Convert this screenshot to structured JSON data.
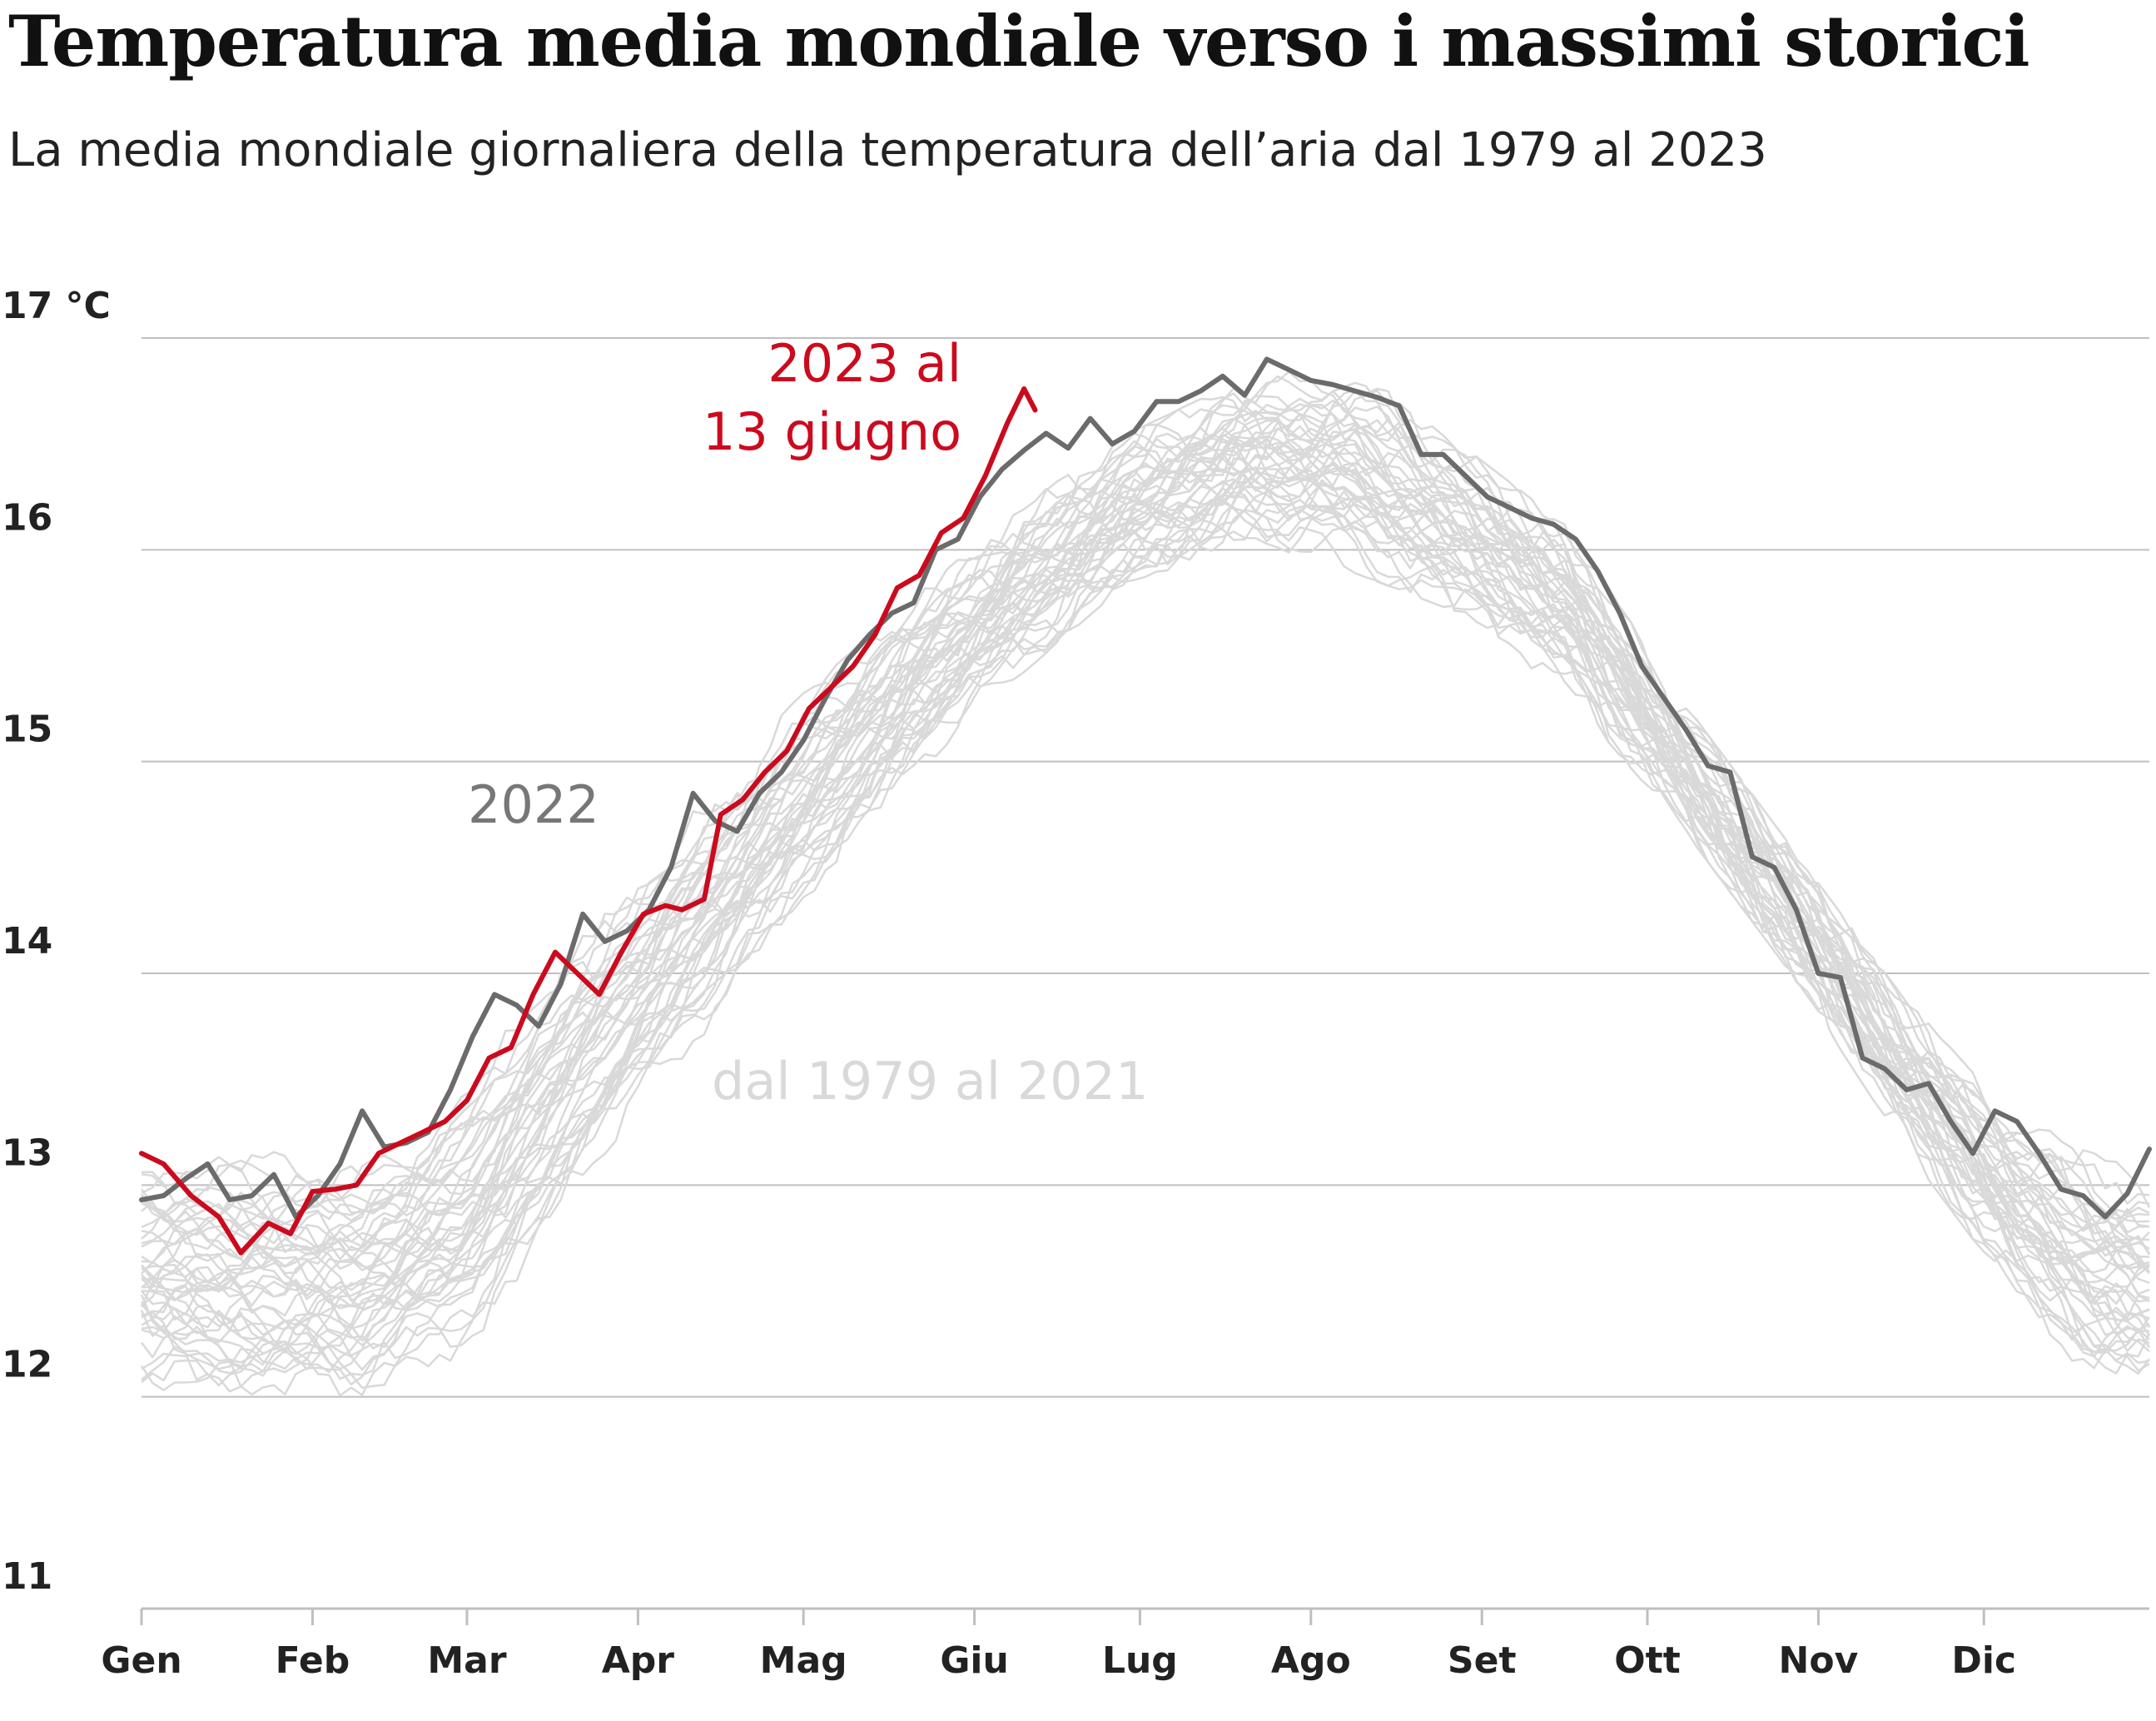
{
  "header": {
    "title": "Temperatura media mondiale verso i massimi storici",
    "subtitle": "La media mondiale giornaliera della temperatura dell’aria dal 1979 al 2023"
  },
  "colors": {
    "series_2023": "#cc0a1e",
    "series_2022": "#6b6b6b",
    "series_hist": "#d9d9d9",
    "grid": "#bfbfbf"
  },
  "chart_data": {
    "type": "line",
    "title": "Temperatura media mondiale verso i massimi storici",
    "subtitle": "La media mondiale giornaliera della temperatura dell’aria dal 1979 al 2023",
    "ylim": [
      11,
      17
    ],
    "y_ticks": [
      {
        "value": 17,
        "label": "17 °C"
      },
      {
        "value": 16,
        "label": "16"
      },
      {
        "value": 15,
        "label": "15"
      },
      {
        "value": 14,
        "label": "14"
      },
      {
        "value": 13,
        "label": "13"
      },
      {
        "value": 12,
        "label": "12"
      },
      {
        "value": 11,
        "label": "11"
      }
    ],
    "x_unit": "day of year",
    "xlim": [
      1,
      365
    ],
    "x_ticks": [
      {
        "day": 1,
        "label": "Gen"
      },
      {
        "day": 32,
        "label": "Feb"
      },
      {
        "day": 60,
        "label": "Mar"
      },
      {
        "day": 91,
        "label": "Apr"
      },
      {
        "day": 121,
        "label": "Mag"
      },
      {
        "day": 152,
        "label": "Giu"
      },
      {
        "day": 182,
        "label": "Lug"
      },
      {
        "day": 213,
        "label": "Ago"
      },
      {
        "day": 244,
        "label": "Set"
      },
      {
        "day": 274,
        "label": "Ott"
      },
      {
        "day": 305,
        "label": "Nov"
      },
      {
        "day": 335,
        "label": "Dic"
      }
    ],
    "grid": true,
    "annotations": [
      {
        "text": "2023 al",
        "series": "2023"
      },
      {
        "text": "13 giugno",
        "series": "2023"
      },
      {
        "text": "2022",
        "series": "2022"
      },
      {
        "text": "dal 1979 al 2021",
        "series": "1979-2021"
      }
    ],
    "series": [
      {
        "id": "2023",
        "points": [
          [
            1,
            13.15
          ],
          [
            5,
            13.1
          ],
          [
            10,
            12.95
          ],
          [
            15,
            12.85
          ],
          [
            19,
            12.68
          ],
          [
            24,
            12.82
          ],
          [
            28,
            12.77
          ],
          [
            32,
            12.97
          ],
          [
            36,
            12.98
          ],
          [
            40,
            13.0
          ],
          [
            44,
            13.15
          ],
          [
            48,
            13.2
          ],
          [
            52,
            13.25
          ],
          [
            56,
            13.3
          ],
          [
            60,
            13.4
          ],
          [
            64,
            13.6
          ],
          [
            68,
            13.65
          ],
          [
            72,
            13.9
          ],
          [
            76,
            14.1
          ],
          [
            80,
            14.0
          ],
          [
            84,
            13.9
          ],
          [
            88,
            14.1
          ],
          [
            92,
            14.28
          ],
          [
            96,
            14.32
          ],
          [
            99,
            14.3
          ],
          [
            103,
            14.35
          ],
          [
            106,
            14.75
          ],
          [
            110,
            14.82
          ],
          [
            114,
            14.95
          ],
          [
            118,
            15.05
          ],
          [
            122,
            15.25
          ],
          [
            126,
            15.35
          ],
          [
            130,
            15.45
          ],
          [
            134,
            15.6
          ],
          [
            138,
            15.82
          ],
          [
            142,
            15.88
          ],
          [
            146,
            16.08
          ],
          [
            150,
            16.15
          ],
          [
            154,
            16.35
          ],
          [
            158,
            16.6
          ],
          [
            161,
            16.76
          ],
          [
            163,
            16.66
          ]
        ]
      },
      {
        "id": "2022",
        "points": [
          [
            1,
            12.93
          ],
          [
            5,
            12.95
          ],
          [
            9,
            13.03
          ],
          [
            13,
            13.1
          ],
          [
            17,
            12.93
          ],
          [
            21,
            12.95
          ],
          [
            25,
            13.05
          ],
          [
            29,
            12.85
          ],
          [
            33,
            12.95
          ],
          [
            37,
            13.1
          ],
          [
            41,
            13.35
          ],
          [
            45,
            13.18
          ],
          [
            49,
            13.2
          ],
          [
            53,
            13.25
          ],
          [
            57,
            13.45
          ],
          [
            61,
            13.7
          ],
          [
            65,
            13.9
          ],
          [
            69,
            13.85
          ],
          [
            73,
            13.75
          ],
          [
            77,
            13.95
          ],
          [
            81,
            14.28
          ],
          [
            85,
            14.15
          ],
          [
            89,
            14.2
          ],
          [
            93,
            14.3
          ],
          [
            97,
            14.5
          ],
          [
            101,
            14.85
          ],
          [
            105,
            14.72
          ],
          [
            109,
            14.67
          ],
          [
            113,
            14.85
          ],
          [
            117,
            14.95
          ],
          [
            121,
            15.1
          ],
          [
            125,
            15.3
          ],
          [
            129,
            15.48
          ],
          [
            133,
            15.6
          ],
          [
            137,
            15.7
          ],
          [
            141,
            15.75
          ],
          [
            145,
            16.0
          ],
          [
            149,
            16.05
          ],
          [
            153,
            16.25
          ],
          [
            157,
            16.38
          ],
          [
            161,
            16.47
          ],
          [
            165,
            16.55
          ],
          [
            169,
            16.48
          ],
          [
            173,
            16.62
          ],
          [
            177,
            16.5
          ],
          [
            181,
            16.56
          ],
          [
            185,
            16.7
          ],
          [
            189,
            16.7
          ],
          [
            193,
            16.75
          ],
          [
            197,
            16.82
          ],
          [
            201,
            16.73
          ],
          [
            205,
            16.9
          ],
          [
            209,
            16.85
          ],
          [
            213,
            16.8
          ],
          [
            217,
            16.78
          ],
          [
            221,
            16.75
          ],
          [
            225,
            16.72
          ],
          [
            229,
            16.68
          ],
          [
            233,
            16.45
          ],
          [
            237,
            16.45
          ],
          [
            241,
            16.35
          ],
          [
            245,
            16.25
          ],
          [
            249,
            16.2
          ],
          [
            253,
            16.15
          ],
          [
            257,
            16.12
          ],
          [
            261,
            16.05
          ],
          [
            265,
            15.9
          ],
          [
            269,
            15.7
          ],
          [
            273,
            15.45
          ],
          [
            277,
            15.3
          ],
          [
            281,
            15.15
          ],
          [
            285,
            14.98
          ],
          [
            289,
            14.95
          ],
          [
            293,
            14.55
          ],
          [
            297,
            14.5
          ],
          [
            301,
            14.3
          ],
          [
            305,
            14.0
          ],
          [
            309,
            13.98
          ],
          [
            313,
            13.6
          ],
          [
            317,
            13.55
          ],
          [
            321,
            13.45
          ],
          [
            325,
            13.48
          ],
          [
            329,
            13.3
          ],
          [
            333,
            13.15
          ],
          [
            337,
            13.35
          ],
          [
            341,
            13.3
          ],
          [
            345,
            13.15
          ],
          [
            349,
            12.98
          ],
          [
            353,
            12.95
          ],
          [
            357,
            12.85
          ],
          [
            361,
            12.96
          ],
          [
            365,
            13.17
          ]
        ]
      },
      {
        "id": "1979-2021",
        "count": 43,
        "envelope_low": [
          [
            1,
            12.05
          ],
          [
            20,
            11.9
          ],
          [
            40,
            11.9
          ],
          [
            60,
            12.2
          ],
          [
            80,
            12.9
          ],
          [
            100,
            13.6
          ],
          [
            120,
            14.3
          ],
          [
            140,
            14.9
          ],
          [
            160,
            15.4
          ],
          [
            180,
            15.85
          ],
          [
            200,
            16.0
          ],
          [
            220,
            15.9
          ],
          [
            240,
            15.7
          ],
          [
            260,
            15.3
          ],
          [
            280,
            14.7
          ],
          [
            300,
            14.0
          ],
          [
            320,
            13.2
          ],
          [
            340,
            12.5
          ],
          [
            355,
            12.05
          ],
          [
            365,
            12.0
          ]
        ],
        "envelope_high": [
          [
            1,
            13.15
          ],
          [
            20,
            13.2
          ],
          [
            40,
            13.15
          ],
          [
            60,
            13.5
          ],
          [
            80,
            14.2
          ],
          [
            100,
            14.75
          ],
          [
            120,
            15.3
          ],
          [
            140,
            15.75
          ],
          [
            160,
            16.2
          ],
          [
            180,
            16.55
          ],
          [
            200,
            16.8
          ],
          [
            220,
            16.9
          ],
          [
            240,
            16.5
          ],
          [
            260,
            16.1
          ],
          [
            280,
            15.3
          ],
          [
            300,
            14.6
          ],
          [
            320,
            13.9
          ],
          [
            340,
            13.35
          ],
          [
            355,
            13.15
          ],
          [
            365,
            13.05
          ]
        ]
      }
    ]
  }
}
